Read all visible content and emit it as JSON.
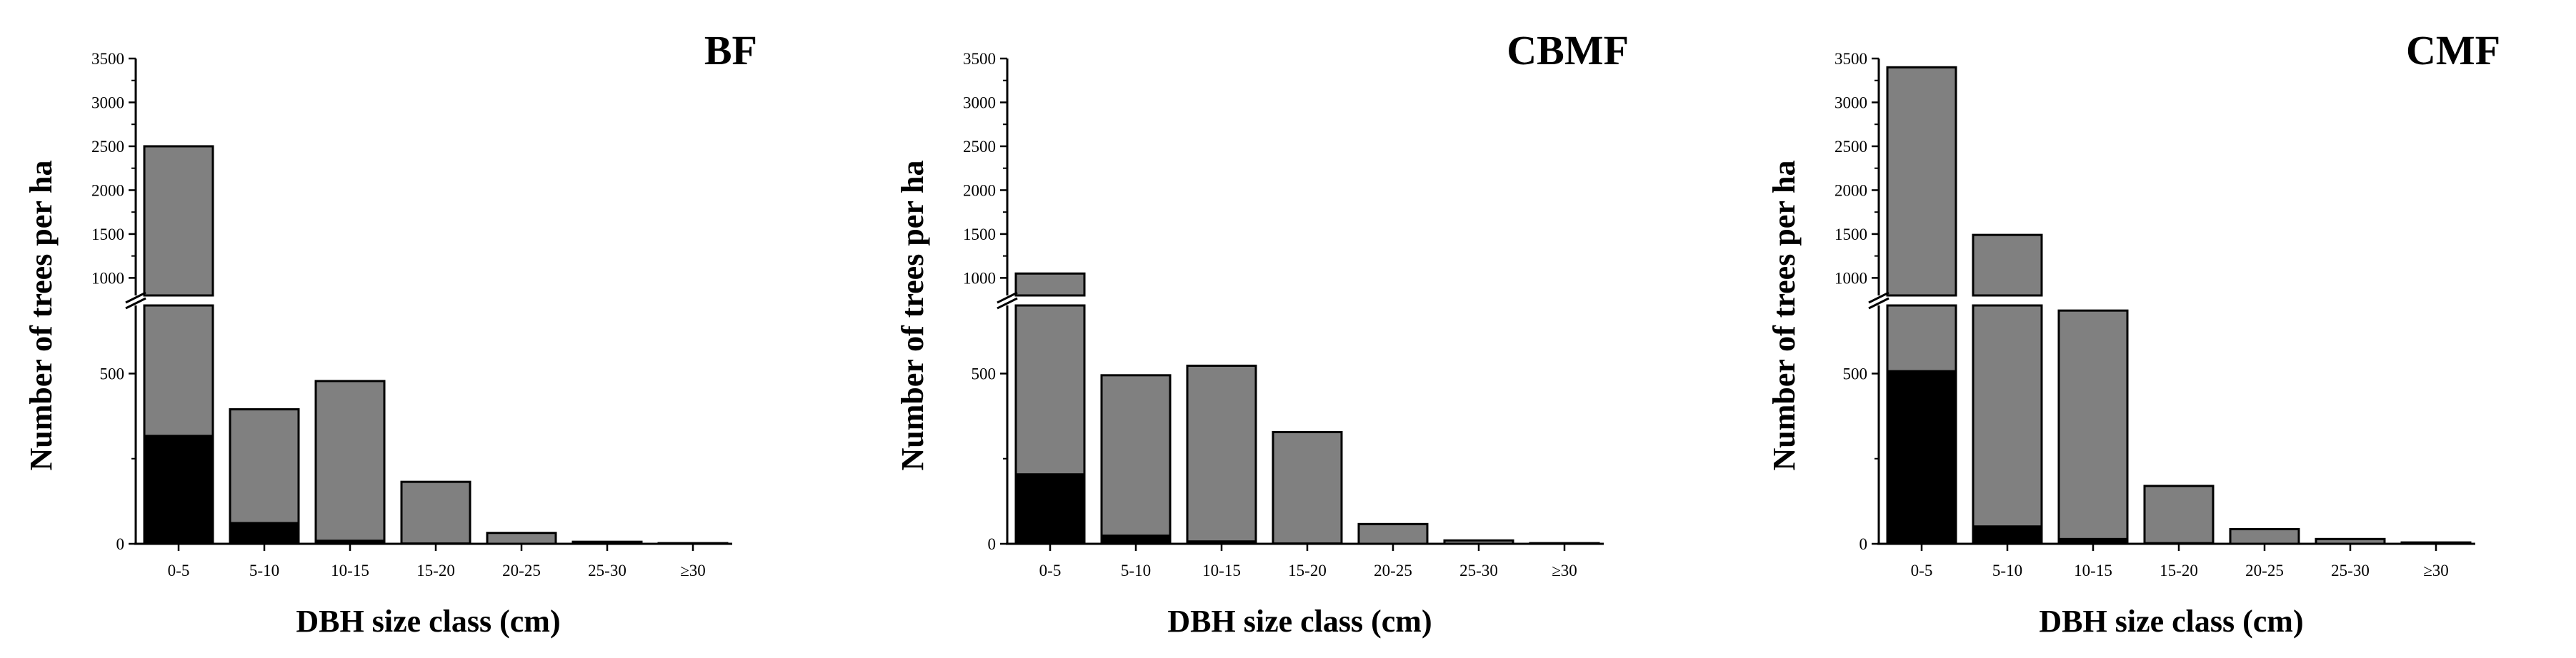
{
  "chart_data": [
    {
      "type": "bar",
      "title": "BF",
      "xlabel": "DBH size class (cm)",
      "ylabel": "Number of trees per ha",
      "categories": [
        "0-5",
        "5-10",
        "10-15",
        "15-20",
        "20-25",
        "25-30",
        "≥30"
      ],
      "y_axis_break": {
        "lower_range": [
          0,
          700
        ],
        "upper_range": [
          800,
          3500
        ]
      },
      "lower_ticks": [
        0,
        500
      ],
      "upper_ticks": [
        1000,
        1500,
        2000,
        2500,
        3000,
        3500
      ],
      "series": [
        {
          "color": "#808080",
          "values": [
            2500,
            395,
            478,
            182,
            32,
            6,
            2
          ]
        },
        {
          "color": "#000000",
          "values": [
            318,
            62,
            10,
            2,
            0,
            0,
            0
          ]
        }
      ]
    },
    {
      "type": "bar",
      "title": "CBMF",
      "xlabel": "DBH size class (cm)",
      "ylabel": "Number of trees per ha",
      "categories": [
        "0-5",
        "5-10",
        "10-15",
        "15-20",
        "20-25",
        "25-30",
        "≥30"
      ],
      "y_axis_break": {
        "lower_range": [
          0,
          700
        ],
        "upper_range": [
          800,
          3500
        ]
      },
      "lower_ticks": [
        0,
        500
      ],
      "upper_ticks": [
        1000,
        1500,
        2000,
        2500,
        3000,
        3500
      ],
      "series": [
        {
          "color": "#808080",
          "values": [
            1050,
            495,
            523,
            328,
            58,
            10,
            2
          ]
        },
        {
          "color": "#000000",
          "values": [
            205,
            25,
            8,
            2,
            0,
            0,
            0
          ]
        }
      ]
    },
    {
      "type": "bar",
      "title": "CMF",
      "xlabel": "DBH size class (cm)",
      "ylabel": "Number of trees per ha",
      "categories": [
        "0-5",
        "5-10",
        "10-15",
        "15-20",
        "20-25",
        "25-30",
        "≥30"
      ],
      "y_axis_break": {
        "lower_range": [
          0,
          700
        ],
        "upper_range": [
          800,
          3500
        ]
      },
      "lower_ticks": [
        0,
        500
      ],
      "upper_ticks": [
        1000,
        1500,
        2000,
        2500,
        3000,
        3500
      ],
      "series": [
        {
          "color": "#808080",
          "values": [
            3400,
            1490,
            685,
            170,
            43,
            14,
            4
          ]
        },
        {
          "color": "#000000",
          "values": [
            508,
            52,
            15,
            3,
            0,
            0,
            0
          ]
        }
      ]
    }
  ]
}
